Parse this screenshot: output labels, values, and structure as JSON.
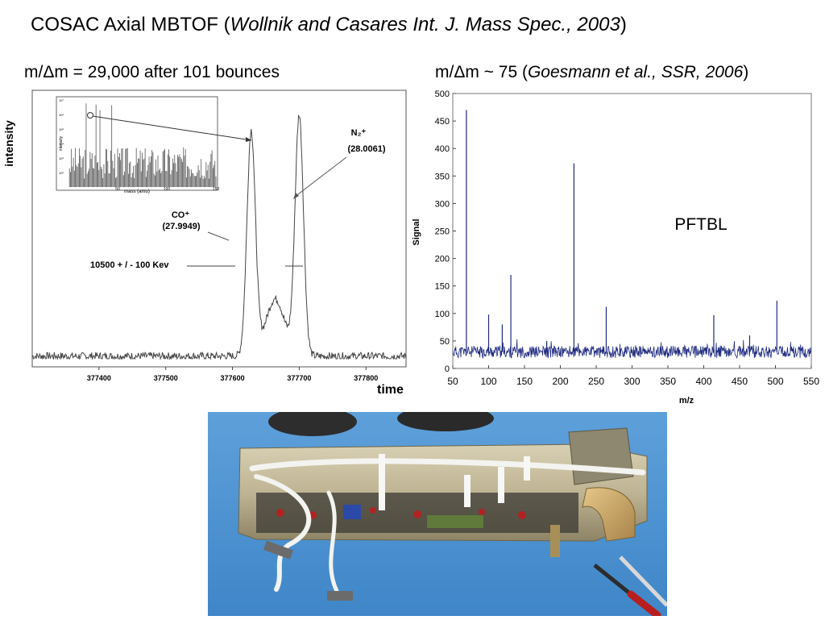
{
  "slide": {
    "title_prefix": "COSAC Axial MBTOF (",
    "title_italic": "Wollnik and Casares Int. J. Mass Spec., 2003",
    "title_suffix": ")",
    "left_subtitle": "m/Δm = 29,000 after 101 bounces",
    "right_subtitle_prefix": "m/Δm ~ 75 (",
    "right_subtitle_italic": "Goesmann et al., SSR, 2006",
    "right_subtitle_suffix": ")"
  },
  "chart_data": [
    {
      "type": "line",
      "xlabel": "time",
      "ylabel": "intensity",
      "xticks": [
        "377400",
        "377500",
        "377600",
        "377700",
        "377800"
      ],
      "xlim": [
        377300,
        377860
      ],
      "peaks": [
        {
          "label": "CO⁺",
          "value": "(27.9949)",
          "center": 377628
        },
        {
          "label": "N₂⁺",
          "value": "(28.0061)",
          "center": 377700
        }
      ],
      "annotations": [
        "10500 + / - 100 Kev"
      ],
      "inset": {
        "xlabel": "mass (amu)",
        "ylabel": "intensity",
        "xticks": [
          "50",
          "100",
          "150"
        ],
        "yticks": [
          "10⁷",
          "10⁶",
          "10⁵",
          "10⁴",
          "10³",
          "10²"
        ]
      }
    },
    {
      "type": "line",
      "xlabel": "m/z",
      "ylabel": "Signal",
      "xlim": [
        50,
        550
      ],
      "ylim": [
        0,
        500
      ],
      "xticks": [
        "50",
        "100",
        "150",
        "200",
        "250",
        "300",
        "350",
        "400",
        "450",
        "500",
        "550"
      ],
      "yticks": [
        "0",
        "50",
        "100",
        "150",
        "200",
        "250",
        "300",
        "350",
        "400",
        "450",
        "500"
      ],
      "legend": "PFTBL",
      "baseline": 30,
      "peaks": [
        {
          "x": 69,
          "y": 470
        },
        {
          "x": 100,
          "y": 98
        },
        {
          "x": 119,
          "y": 80
        },
        {
          "x": 131,
          "y": 170
        },
        {
          "x": 181,
          "y": 50
        },
        {
          "x": 219,
          "y": 373
        },
        {
          "x": 264,
          "y": 112
        },
        {
          "x": 414,
          "y": 97
        },
        {
          "x": 464,
          "y": 60
        },
        {
          "x": 502,
          "y": 123
        }
      ]
    }
  ],
  "photo": {
    "subject": "COSAC MBTOF instrument hardware"
  }
}
